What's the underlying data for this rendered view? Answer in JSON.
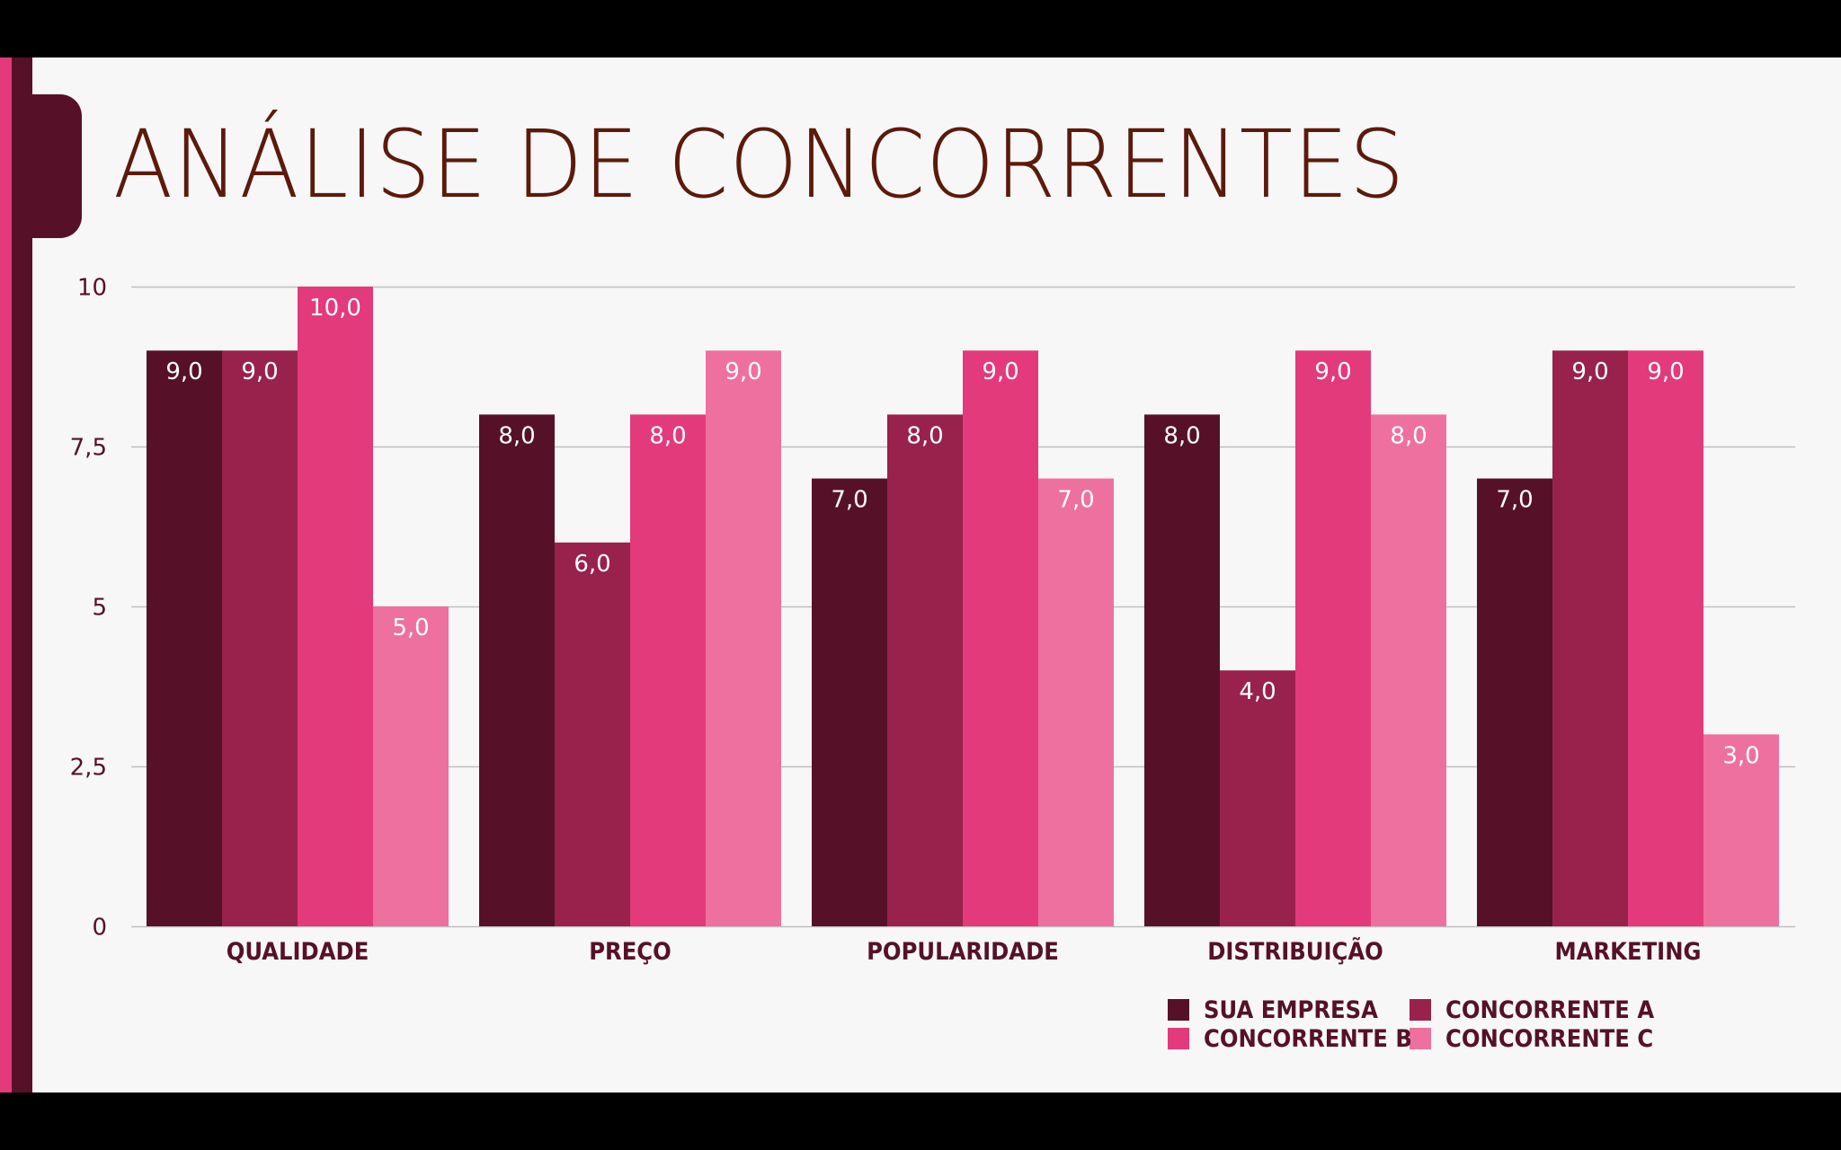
{
  "slide": {
    "title": "ANÁLISE DE CONCORRENTES"
  },
  "colors": {
    "accent_pink": "#E33A7B",
    "accent_dark": "#561129",
    "title": "#5C1A0B",
    "background": "#F7F7F7",
    "text": "#561129",
    "gridline": "#BFBFBF"
  },
  "chart_data": {
    "type": "bar",
    "title": "ANÁLISE DE CONCORRENTES",
    "xlabel": "",
    "ylabel": "",
    "categories": [
      "QUALIDADE",
      "PREÇO",
      "POPULARIDADE",
      "DISTRIBUIÇÃO",
      "MARKETING"
    ],
    "series": [
      {
        "name": "SUA EMPRESA",
        "color": "#561129",
        "values": [
          9,
          8,
          7,
          8,
          7
        ],
        "labels": [
          "9,0",
          "8,0",
          "7,0",
          "8,0",
          "7,0"
        ]
      },
      {
        "name": "CONCORRENTE A",
        "color": "#98224C",
        "values": [
          9,
          6,
          8,
          4,
          9
        ],
        "labels": [
          "9,0",
          "6,0",
          "8,0",
          "4,0",
          "9,0"
        ]
      },
      {
        "name": "CONCORRENTE B",
        "color": "#E33A7B",
        "values": [
          10,
          8,
          9,
          9,
          9
        ],
        "labels": [
          "10,0",
          "8,0",
          "9,0",
          "9,0",
          "9,0"
        ]
      },
      {
        "name": "CONCORRENTE C",
        "color": "#EE709E",
        "values": [
          5,
          9,
          7,
          8,
          3
        ],
        "labels": [
          "5,0",
          "9,0",
          "7,0",
          "8,0",
          "3,0"
        ]
      }
    ],
    "ylim": [
      0,
      10
    ],
    "yticks": [
      0,
      2.5,
      5,
      7.5,
      10
    ],
    "ytick_labels": [
      "0",
      "2,5",
      "5",
      "7,5",
      "10"
    ],
    "grid": true,
    "data_labels": "inside-top",
    "legend_position": "bottom-right"
  }
}
